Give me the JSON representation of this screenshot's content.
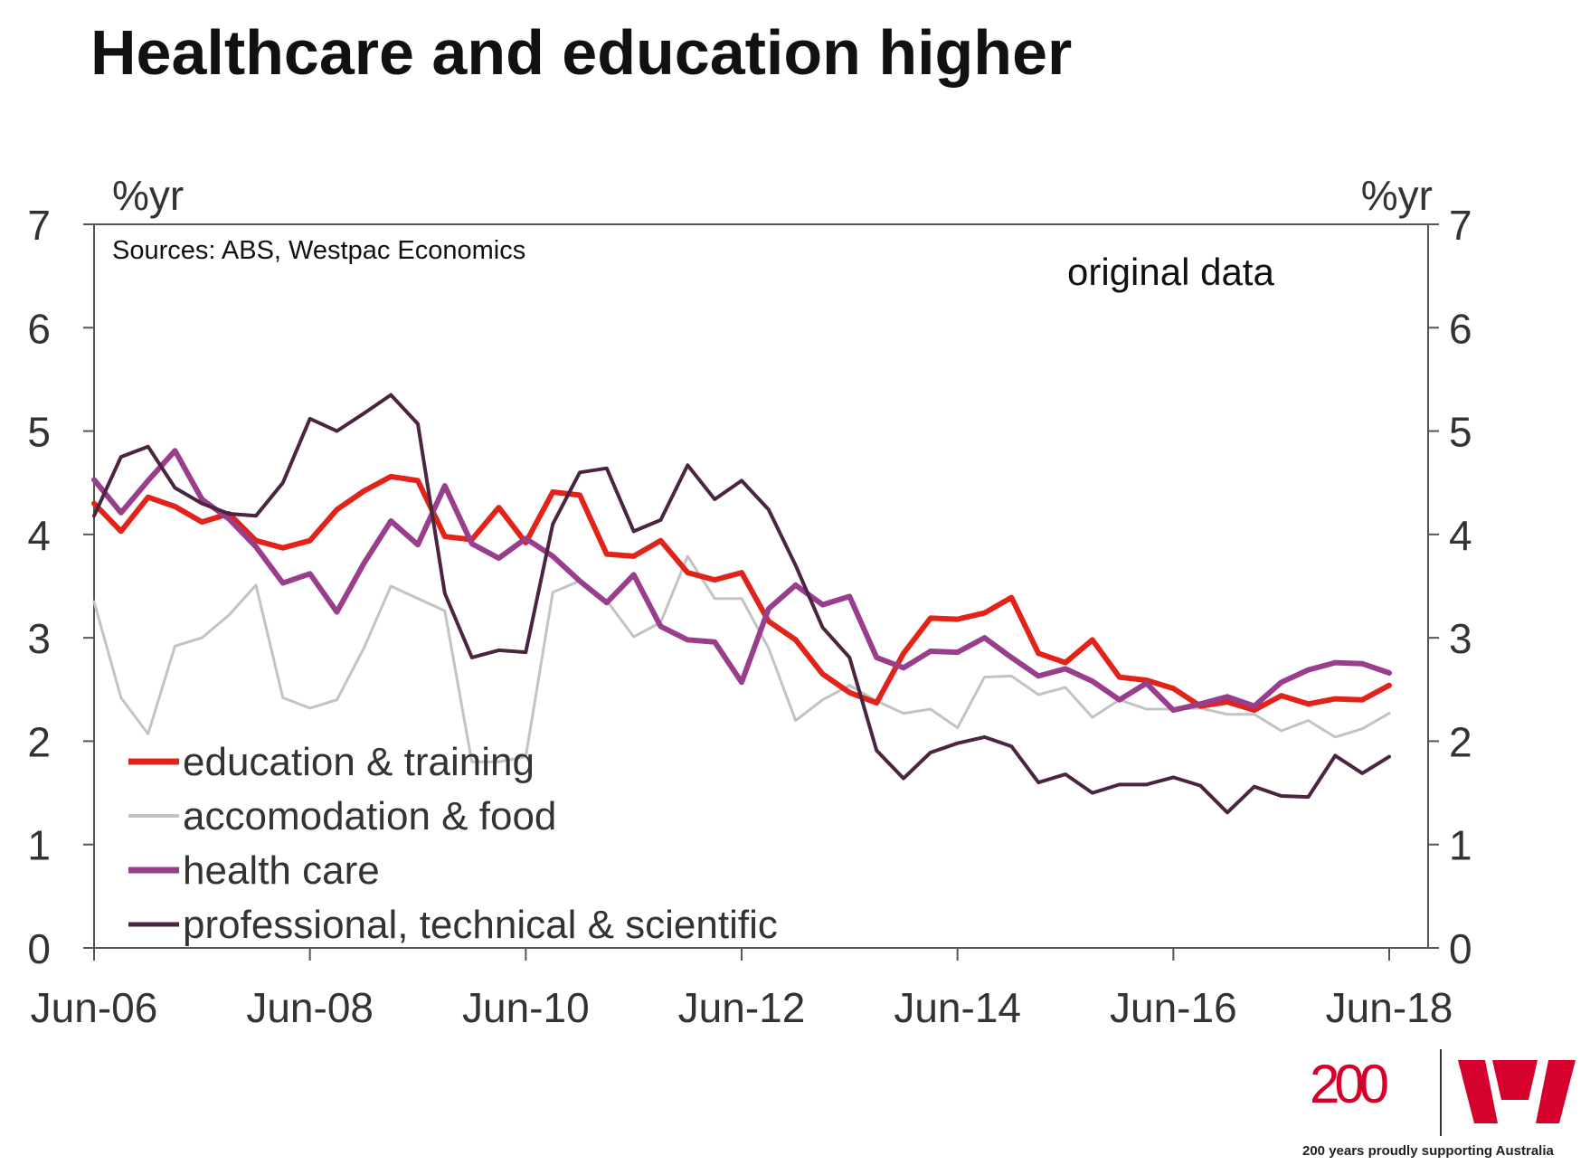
{
  "title": "Healthcare and education higher",
  "brand": {
    "number": "200",
    "tagline": "200 years proudly supporting Australia",
    "color": "#d5002b"
  },
  "chart_data": {
    "type": "line",
    "title": "",
    "source": "Sources: ABS, Westpac Economics",
    "annotation": "original data",
    "ylabel_left": "%yr",
    "ylabel_right": "%yr",
    "ylim": [
      0,
      7
    ],
    "yticks": [
      "0",
      "1",
      "2",
      "3",
      "4",
      "5",
      "6",
      "7"
    ],
    "xlim": [
      0,
      48
    ],
    "xtick_labels": [
      "Jun-06",
      "Jun-08",
      "Jun-10",
      "Jun-12",
      "Jun-14",
      "Jun-16",
      "Jun-18"
    ],
    "xtick_positions": [
      0,
      8,
      16,
      24,
      32,
      40,
      48
    ],
    "legend_position": "bottom-left",
    "series": [
      {
        "name": "accomodation & food",
        "color": "#c3c3c3",
        "values": [
          3.35,
          2.42,
          2.07,
          2.92,
          3.0,
          3.22,
          3.51,
          2.42,
          2.32,
          2.4,
          2.9,
          3.5,
          3.38,
          3.26,
          1.8,
          1.8,
          1.85,
          3.44,
          3.55,
          3.36,
          3.01,
          3.15,
          3.79,
          3.38,
          3.38,
          2.9,
          2.2,
          2.4,
          2.54,
          2.39,
          2.27,
          2.31,
          2.13,
          2.62,
          2.63,
          2.45,
          2.52,
          2.23,
          2.4,
          2.31,
          2.31,
          2.32,
          2.26,
          2.26,
          2.1,
          2.2,
          2.04,
          2.12,
          2.27
        ]
      },
      {
        "name": "education & training",
        "color": "#e2231a",
        "values": [
          4.3,
          4.03,
          4.36,
          4.27,
          4.12,
          4.2,
          3.94,
          3.87,
          3.94,
          4.24,
          4.42,
          4.56,
          4.52,
          3.98,
          3.95,
          4.26,
          3.92,
          4.41,
          4.38,
          3.81,
          3.79,
          3.94,
          3.63,
          3.56,
          3.63,
          3.16,
          2.98,
          2.65,
          2.47,
          2.37,
          2.85,
          3.19,
          3.18,
          3.24,
          3.39,
          2.85,
          2.76,
          2.98,
          2.62,
          2.59,
          2.51,
          2.34,
          2.38,
          2.3,
          2.44,
          2.36,
          2.41,
          2.4,
          2.54
        ]
      },
      {
        "name": "health care",
        "color": "#993e8c",
        "values": [
          4.53,
          4.21,
          4.52,
          4.81,
          4.34,
          4.15,
          3.88,
          3.53,
          3.62,
          3.25,
          3.72,
          4.13,
          3.9,
          4.47,
          3.91,
          3.77,
          3.96,
          3.79,
          3.55,
          3.34,
          3.61,
          3.11,
          2.98,
          2.96,
          2.57,
          3.28,
          3.51,
          3.32,
          3.4,
          2.81,
          2.71,
          2.87,
          2.86,
          3.0,
          2.81,
          2.63,
          2.7,
          2.58,
          2.4,
          2.56,
          2.3,
          2.36,
          2.43,
          2.34,
          2.57,
          2.69,
          2.76,
          2.75,
          2.66
        ]
      },
      {
        "name": "professional, technical & scientific",
        "color": "#4b2440",
        "values": [
          4.18,
          4.75,
          4.85,
          4.45,
          4.3,
          4.2,
          4.18,
          4.5,
          5.12,
          5.0,
          5.17,
          5.35,
          5.07,
          3.43,
          2.81,
          2.88,
          2.86,
          4.1,
          4.6,
          4.64,
          4.03,
          4.14,
          4.67,
          4.34,
          4.52,
          4.24,
          3.7,
          3.1,
          2.81,
          1.91,
          1.64,
          1.89,
          1.98,
          2.04,
          1.95,
          1.6,
          1.68,
          1.5,
          1.58,
          1.58,
          1.65,
          1.57,
          1.31,
          1.56,
          1.47,
          1.46,
          1.86,
          1.69,
          1.85
        ]
      }
    ]
  }
}
